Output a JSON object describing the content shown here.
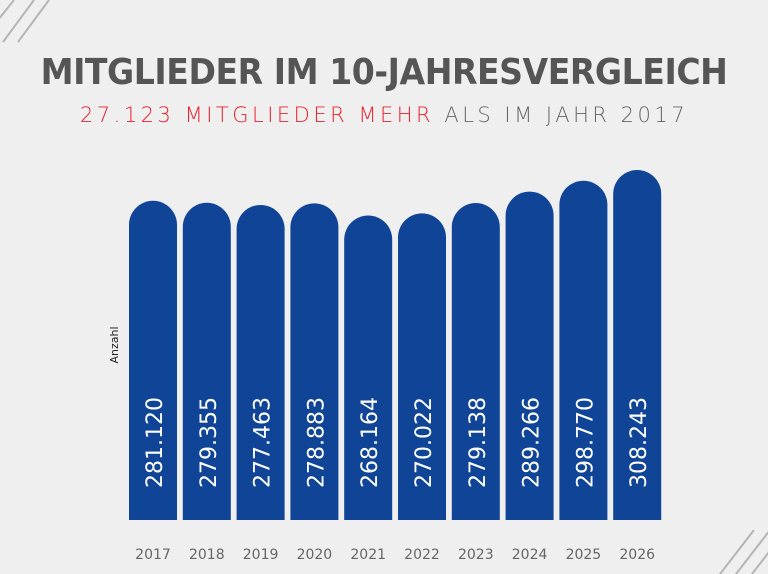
{
  "chart_data": {
    "type": "bar",
    "title": "MITGLIEDER IM 10-JAHRESVERGLEICH",
    "subtitle_highlight": "27.123 MITGLIEDER MEHR",
    "subtitle_rest": "ALS IM JAHR 2017",
    "ylabel": "Anzahl",
    "xlabel": "",
    "categories": [
      "2017",
      "2018",
      "2019",
      "2020",
      "2021",
      "2022",
      "2023",
      "2024",
      "2025",
      "2026"
    ],
    "values": [
      281120,
      279355,
      277463,
      278883,
      268164,
      270022,
      279138,
      289266,
      298770,
      308243
    ],
    "data_labels": [
      "281.120",
      "279.355",
      "277.463",
      "278.883",
      "268.164",
      "270.022",
      "279.138",
      "289.266",
      "298.770",
      "308.243"
    ],
    "ylim": [
      0,
      310000
    ],
    "grid": false,
    "colors": {
      "bar": "#0f4496",
      "highlight": "#e8212e",
      "title": "#555555",
      "background": "#efefef"
    }
  }
}
